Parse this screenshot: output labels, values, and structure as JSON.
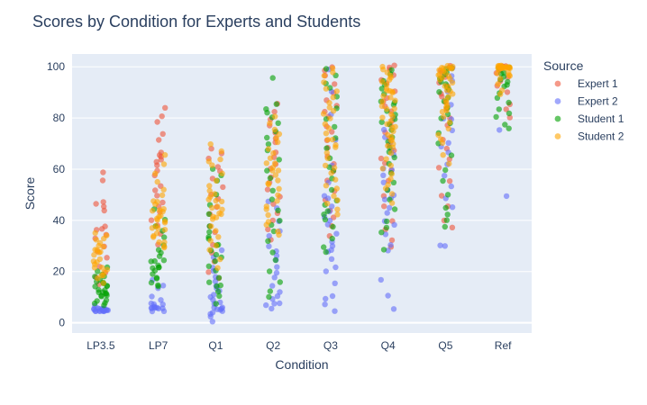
{
  "chart_data": {
    "type": "scatter",
    "style": "jittered strip plot",
    "title": "Scores by Condition for Experts and Students",
    "xlabel": "Condition",
    "ylabel": "Score",
    "categories": [
      "LP3.5",
      "LP7",
      "Q1",
      "Q2",
      "Q3",
      "Q4",
      "Q5",
      "Ref"
    ],
    "ylim": [
      -4,
      105
    ],
    "yticks": [
      0,
      20,
      40,
      60,
      80,
      100
    ],
    "grid": true,
    "background": "#e5ecf6",
    "legend": {
      "title": "Source",
      "placement": "top-right, outside plot"
    },
    "series": [
      {
        "name": "Expert 1",
        "color": "#ef553b",
        "points": {
          "LP3.5": [
            59,
            55,
            47,
            46,
            45,
            44,
            38,
            37,
            36,
            34,
            33,
            30,
            28,
            25,
            22,
            20,
            18,
            15
          ],
          "LP7": [
            84,
            81,
            78,
            74,
            71,
            67,
            66,
            65,
            64,
            63,
            61,
            60,
            58,
            54,
            52,
            50,
            47,
            45,
            43,
            40,
            38,
            35,
            30
          ],
          "Q1": [
            68,
            66,
            64,
            61,
            59,
            56,
            53,
            50,
            48,
            45,
            42,
            38,
            35,
            30,
            27,
            24,
            20,
            17
          ],
          "Q2": [
            85,
            82,
            80,
            77,
            74,
            72,
            70,
            67,
            65,
            62,
            60,
            57,
            55,
            52,
            49,
            46,
            43,
            40,
            36,
            33
          ],
          "Q3": [
            100,
            99,
            97,
            93,
            90,
            87,
            85,
            82,
            80,
            77,
            74,
            71,
            68,
            65,
            62,
            59,
            56,
            52,
            48,
            44,
            41,
            38,
            34
          ],
          "Q4": [
            100,
            100,
            99,
            97,
            95,
            93,
            91,
            88,
            86,
            84,
            82,
            79,
            77,
            74,
            72,
            70,
            67,
            64,
            62,
            59,
            55,
            50,
            45,
            40,
            36,
            32,
            30
          ],
          "Q5": [
            100,
            100,
            99,
            98,
            96,
            94,
            92,
            90,
            88,
            86,
            84,
            80,
            77,
            72,
            68,
            64,
            60,
            55,
            50,
            45,
            40,
            37
          ],
          "Ref": [
            100,
            100,
            100,
            99,
            98,
            96,
            95,
            92,
            90,
            85,
            83,
            80
          ]
        }
      },
      {
        "name": "Expert 2",
        "color": "#636efa",
        "points": {
          "LP3.5": [
            5,
            5,
            5,
            5,
            5,
            5,
            5,
            5,
            5,
            5,
            5,
            5,
            5,
            5,
            5,
            5,
            5,
            5,
            6,
            6,
            7
          ],
          "LP7": [
            17,
            15,
            13,
            10,
            9,
            8,
            7,
            7,
            6,
            6,
            6,
            6,
            6,
            5,
            5,
            5,
            6,
            6
          ],
          "Q1": [
            28,
            25,
            22,
            20,
            18,
            16,
            15,
            13,
            12,
            11,
            10,
            9,
            8,
            7,
            6,
            6,
            5,
            5,
            5,
            5,
            4,
            3,
            1,
            2
          ],
          "Q2": [
            48,
            45,
            40,
            36,
            34,
            30,
            28,
            26,
            24,
            22,
            20,
            18,
            15,
            12,
            10,
            9,
            8,
            8,
            7,
            6
          ],
          "Q3": [
            99,
            90,
            82,
            72,
            62,
            55,
            50,
            48,
            45,
            43,
            41,
            40,
            38,
            35,
            32,
            30,
            29,
            28,
            22,
            20,
            15,
            10,
            9,
            7,
            5,
            25
          ],
          "Q4": [
            80,
            75,
            72,
            70,
            68,
            65,
            60,
            58,
            55,
            50,
            49,
            48,
            45,
            43,
            40,
            38,
            35,
            30,
            28,
            17,
            10,
            5,
            60,
            52
          ],
          "Q5": [
            99,
            97,
            95,
            90,
            85,
            80,
            75,
            70,
            69,
            66,
            62,
            57,
            53,
            49,
            45,
            30,
            30,
            79
          ],
          "Ref": [
            75,
            50
          ]
        }
      },
      {
        "name": "Student 1",
        "color": "#00a000",
        "points": {
          "LP3.5": [
            20,
            19,
            18,
            17,
            16,
            15,
            15,
            14,
            14,
            13,
            13,
            12,
            12,
            11,
            11,
            10,
            10,
            9,
            9,
            8,
            8,
            7,
            16,
            18,
            22,
            12
          ],
          "LP7": [
            45,
            40,
            36,
            33,
            30,
            28,
            27,
            25,
            24,
            23,
            22,
            21,
            20,
            19,
            18,
            17,
            16,
            15,
            14,
            22,
            24,
            26,
            38
          ],
          "Q1": [
            60,
            58,
            55,
            50,
            46,
            42,
            38,
            35,
            33,
            31,
            30,
            28,
            26,
            24,
            22,
            20,
            18,
            16,
            15,
            14,
            12,
            10,
            8,
            27,
            34
          ],
          "Q2": [
            96,
            86,
            84,
            82,
            80,
            78,
            75,
            72,
            70,
            67,
            64,
            60,
            56,
            52,
            48,
            44,
            40,
            36,
            32,
            28,
            24,
            20,
            16,
            12,
            10,
            38
          ],
          "Q3": [
            99,
            97,
            94,
            92,
            88,
            84,
            80,
            76,
            72,
            68,
            64,
            60,
            56,
            52,
            48,
            44,
            42,
            40,
            37,
            33,
            30,
            28,
            46,
            61
          ],
          "Q4": [
            99,
            97,
            95,
            93,
            91,
            89,
            87,
            85,
            83,
            81,
            79,
            77,
            75,
            73,
            71,
            69,
            67,
            65,
            62,
            58,
            55,
            52,
            48,
            44,
            40,
            37,
            35,
            28,
            86,
            78
          ],
          "Q5": [
            100,
            99,
            98,
            97,
            96,
            95,
            94,
            93,
            92,
            91,
            90,
            88,
            86,
            84,
            82,
            80,
            78,
            74,
            70,
            65,
            60,
            55,
            50,
            45,
            42,
            40,
            38
          ],
          "Ref": [
            100,
            99,
            98,
            97,
            96,
            95,
            94,
            93,
            92,
            90,
            88,
            86,
            84,
            82,
            80,
            77,
            76
          ]
        }
      },
      {
        "name": "Student 2",
        "color": "#ffa500",
        "points": {
          "LP3.5": [
            35,
            34,
            33,
            32,
            31,
            30,
            29,
            28,
            27,
            26,
            25,
            24,
            23,
            22,
            21,
            20,
            19,
            18,
            17,
            16,
            28,
            24,
            30,
            21
          ],
          "LP7": [
            65,
            62,
            58,
            55,
            52,
            50,
            48,
            47,
            46,
            45,
            44,
            43,
            42,
            41,
            40,
            39,
            38,
            37,
            36,
            35,
            34,
            33,
            32,
            31,
            30,
            29,
            42,
            44,
            40,
            37
          ],
          "Q1": [
            70,
            67,
            64,
            63,
            61,
            58,
            56,
            54,
            52,
            50,
            49,
            48,
            47,
            46,
            45,
            44,
            43,
            42,
            41,
            40,
            38,
            36,
            34,
            32,
            30,
            28,
            25,
            22,
            48,
            43
          ],
          "Q2": [
            80,
            78,
            76,
            74,
            72,
            70,
            68,
            66,
            64,
            62,
            61,
            60,
            59,
            58,
            56,
            54,
            52,
            50,
            48,
            46,
            44,
            42,
            40,
            38,
            36,
            34,
            62,
            55
          ],
          "Q3": [
            100,
            98,
            96,
            94,
            92,
            90,
            88,
            86,
            84,
            82,
            80,
            78,
            76,
            74,
            72,
            70,
            68,
            66,
            64,
            62,
            60,
            58,
            56,
            54,
            52,
            50,
            48,
            46,
            44,
            42,
            83,
            71
          ],
          "Q4": [
            100,
            99,
            98,
            97,
            96,
            95,
            94,
            93,
            92,
            91,
            90,
            89,
            88,
            87,
            86,
            85,
            84,
            83,
            82,
            81,
            80,
            79,
            78,
            77,
            76,
            75,
            74,
            73,
            72,
            71,
            70,
            69,
            68,
            66,
            64,
            62,
            60,
            58,
            56,
            54,
            52,
            50,
            47,
            90,
            90
          ],
          "Q5": [
            100,
            100,
            100,
            100,
            100,
            99,
            99,
            99,
            98,
            98,
            97,
            97,
            96,
            96,
            95,
            95,
            94,
            93,
            92,
            91,
            90,
            89,
            88,
            87,
            86,
            85,
            84,
            83,
            82,
            80,
            78,
            76,
            74,
            72,
            70,
            66,
            62
          ],
          "Ref": [
            100,
            100,
            100,
            100,
            100,
            100,
            100,
            100,
            100,
            100,
            100,
            100,
            100,
            100,
            100,
            100,
            100,
            100,
            99,
            99,
            98,
            98,
            97,
            96,
            95,
            93,
            91,
            89
          ]
        }
      }
    ]
  }
}
